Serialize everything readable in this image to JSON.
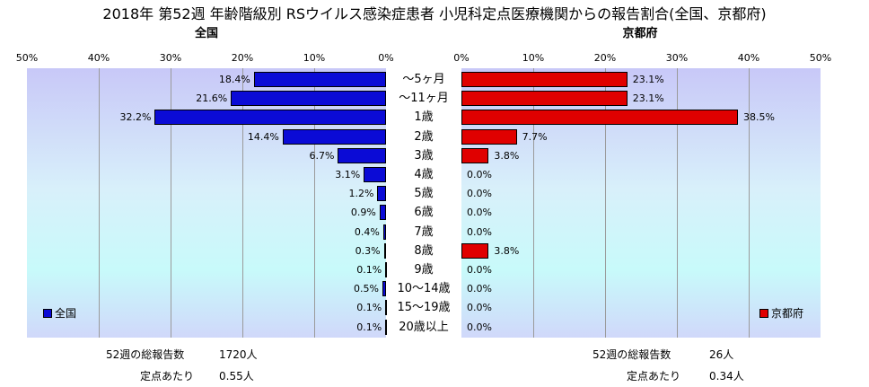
{
  "title": "2018年 第52週 年齢階級別 RSウイルス感染症患者 小児科定点医療機関からの報告割合(全国、京都府)",
  "chart_data": [
    {
      "type": "bar",
      "orientation": "horizontal",
      "title": "全国",
      "direction": "right-to-left",
      "xlim": [
        0,
        50
      ],
      "x_ticks": [
        "50%",
        "40%",
        "30%",
        "20%",
        "10%",
        "0%"
      ],
      "grid": true,
      "legend": "全国",
      "legend_position": "bottom-left",
      "color": "#0b0bd6",
      "categories": [
        "～5ヶ月",
        "～11ヶ月",
        "1歳",
        "2歳",
        "3歳",
        "4歳",
        "5歳",
        "6歳",
        "7歳",
        "8歳",
        "9歳",
        "10～14歳",
        "15～19歳",
        "20歳以上"
      ],
      "values": [
        18.4,
        21.6,
        32.2,
        14.4,
        6.7,
        3.1,
        1.2,
        0.9,
        0.4,
        0.3,
        0.1,
        0.5,
        0.1,
        0.1
      ],
      "value_labels": [
        "18.4%",
        "21.6%",
        "32.2%",
        "14.4%",
        "6.7%",
        "3.1%",
        "1.2%",
        "0.9%",
        "0.4%",
        "0.3%",
        "0.1%",
        "0.5%",
        "0.1%",
        "0.1%"
      ]
    },
    {
      "type": "bar",
      "orientation": "horizontal",
      "title": "京都府",
      "direction": "left-to-right",
      "xlim": [
        0,
        50
      ],
      "x_ticks": [
        "0%",
        "10%",
        "20%",
        "30%",
        "40%",
        "50%"
      ],
      "grid": true,
      "legend": "京都府",
      "legend_position": "bottom-right",
      "color": "#e00000",
      "categories": [
        "～5ヶ月",
        "～11ヶ月",
        "1歳",
        "2歳",
        "3歳",
        "4歳",
        "5歳",
        "6歳",
        "7歳",
        "8歳",
        "9歳",
        "10～14歳",
        "15～19歳",
        "20歳以上"
      ],
      "values": [
        23.1,
        23.1,
        38.5,
        7.7,
        3.8,
        0.0,
        0.0,
        0.0,
        0.0,
        3.8,
        0.0,
        0.0,
        0.0,
        0.0
      ],
      "value_labels": [
        "23.1%",
        "23.1%",
        "38.5%",
        "7.7%",
        "3.8%",
        "0.0%",
        "0.0%",
        "0.0%",
        "0.0%",
        "3.8%",
        "0.0%",
        "0.0%",
        "0.0%",
        "0.0%"
      ]
    }
  ],
  "footer": {
    "national": {
      "total_label": "52週の総報告数",
      "total_value": "1720人",
      "per_site_label": "定点あたり",
      "per_site_value": "0.55人"
    },
    "kyoto": {
      "total_label": "52週の総報告数",
      "total_value": "26人",
      "per_site_label": "定点あたり",
      "per_site_value": "0.34人"
    }
  }
}
